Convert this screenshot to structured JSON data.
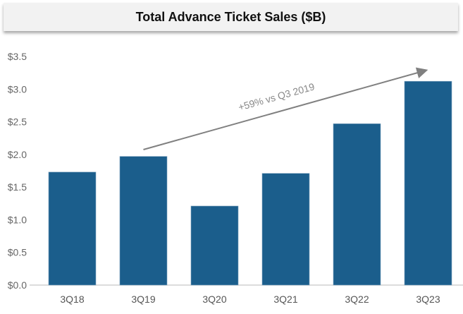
{
  "chart_data": {
    "type": "bar",
    "title": "Total Advance Ticket Sales ($B)",
    "categories": [
      "3Q18",
      "3Q19",
      "3Q20",
      "3Q21",
      "3Q22",
      "3Q23"
    ],
    "values": [
      1.73,
      1.97,
      1.21,
      1.71,
      2.47,
      3.12
    ],
    "ylim": [
      0,
      3.5
    ],
    "yticks": [
      "$0.0",
      "$0.5",
      "$1.0",
      "$1.5",
      "$2.0",
      "$2.5",
      "$3.0",
      "$3.5"
    ],
    "ytick_values": [
      0,
      0.5,
      1.0,
      1.5,
      2.0,
      2.5,
      3.0,
      3.5
    ],
    "xlabel": "",
    "ylabel": "",
    "grid": false,
    "annotation": {
      "text": "+59% vs Q3 2019",
      "from_category": "3Q19",
      "to_category": "3Q23"
    },
    "bar_color": "#1b5e8c"
  }
}
